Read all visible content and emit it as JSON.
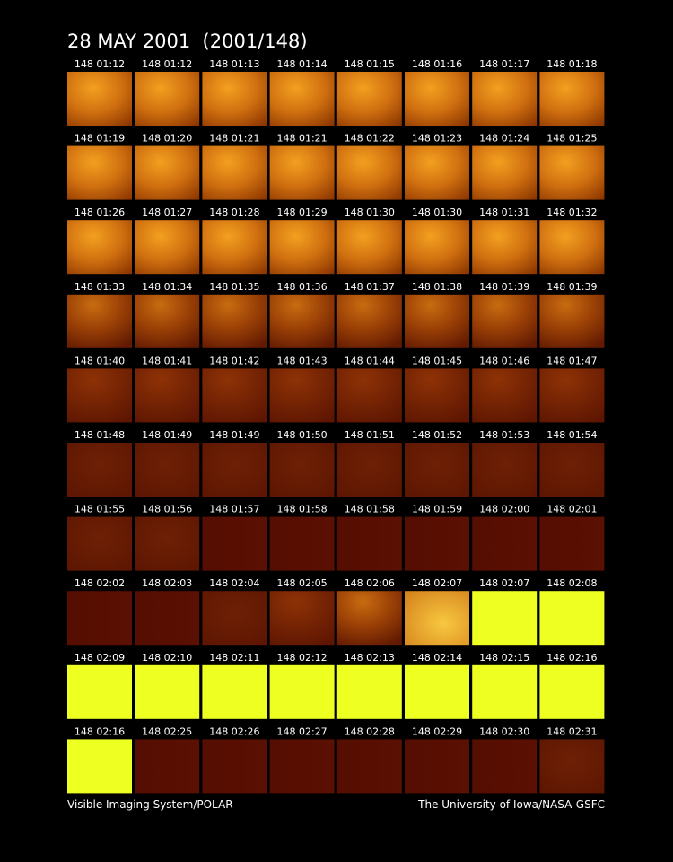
{
  "header": {
    "title": "28 MAY 2001  (2001/148)"
  },
  "frames": [
    [
      "148 01:12",
      "148 01:12",
      "148 01:13",
      "148 01:14",
      "148 01:15",
      "148 01:16",
      "148 01:17",
      "148 01:18"
    ],
    [
      "148 01:19",
      "148 01:20",
      "148 01:21",
      "148 01:21",
      "148 01:22",
      "148 01:23",
      "148 01:24",
      "148 01:25"
    ],
    [
      "148 01:26",
      "148 01:27",
      "148 01:28",
      "148 01:29",
      "148 01:30",
      "148 01:30",
      "148 01:31",
      "148 01:32"
    ],
    [
      "148 01:33",
      "148 01:34",
      "148 01:35",
      "148 01:36",
      "148 01:37",
      "148 01:38",
      "148 01:39",
      "148 01:39"
    ],
    [
      "148 01:40",
      "148 01:41",
      "148 01:42",
      "148 01:43",
      "148 01:44",
      "148 01:45",
      "148 01:46",
      "148 01:47"
    ],
    [
      "148 01:48",
      "148 01:49",
      "148 01:49",
      "148 01:50",
      "148 01:51",
      "148 01:52",
      "148 01:53",
      "148 01:54"
    ],
    [
      "148 01:55",
      "148 01:56",
      "148 01:57",
      "148 01:58",
      "148 01:58",
      "148 01:59",
      "148 02:00",
      "148 02:01"
    ],
    [
      "148 02:02",
      "148 02:03",
      "148 02:04",
      "148 02:05",
      "148 02:06",
      "148 02:07",
      "148 02:07",
      "148 02:08"
    ],
    [
      "148 02:09",
      "148 02:10",
      "148 02:11",
      "148 02:12",
      "148 02:13",
      "148 02:14",
      "148 02:15",
      "148 02:16"
    ],
    [
      "148 02:16",
      "148 02:25",
      "148 02:26",
      "148 02:27",
      "148 02:28",
      "148 02:29",
      "148 02:30",
      "148 02:31"
    ]
  ],
  "footer": {
    "left": "Visible Imaging System/POLAR",
    "right": "The University of Iowa/NASA-GSFC"
  }
}
